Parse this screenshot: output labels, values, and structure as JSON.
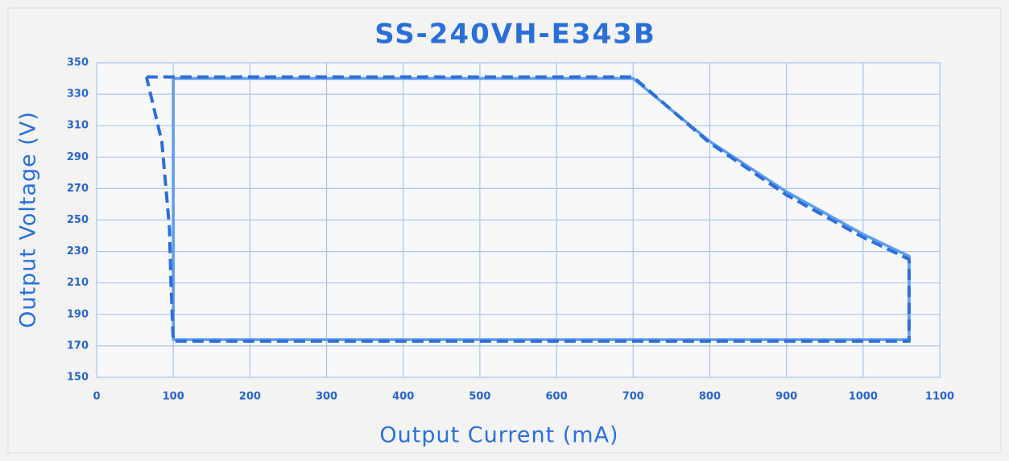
{
  "chart_data": {
    "type": "line",
    "title": "SS-240VH-E343B",
    "x_label": "Output Current (mA)",
    "y_label": "Output  Voltage (V)",
    "xlim": [
      0,
      1100
    ],
    "xticks": [
      0,
      100,
      200,
      300,
      400,
      500,
      600,
      700,
      800,
      900,
      1000,
      1100
    ],
    "ylim": [
      150,
      350
    ],
    "yticks": [
      150,
      170,
      190,
      210,
      230,
      250,
      270,
      290,
      310,
      330,
      350
    ],
    "grid": true,
    "series": [
      {
        "color": "#5d9cf0",
        "line_style": "solid",
        "x": [
          100,
          700,
          800,
          900,
          1000,
          1060,
          1060,
          100,
          100
        ],
        "values": [
          340,
          340,
          300,
          268,
          241,
          227,
          174,
          174,
          340
        ]
      },
      {
        "color": "#2e6fd8",
        "line_style": "dashed",
        "x": [
          65,
          700,
          800,
          900,
          1000,
          1060,
          1060,
          100,
          97,
          95,
          85,
          65
        ],
        "values": [
          341,
          341,
          299,
          266,
          239,
          225,
          173,
          173,
          210,
          245,
          300,
          341
        ]
      }
    ]
  }
}
